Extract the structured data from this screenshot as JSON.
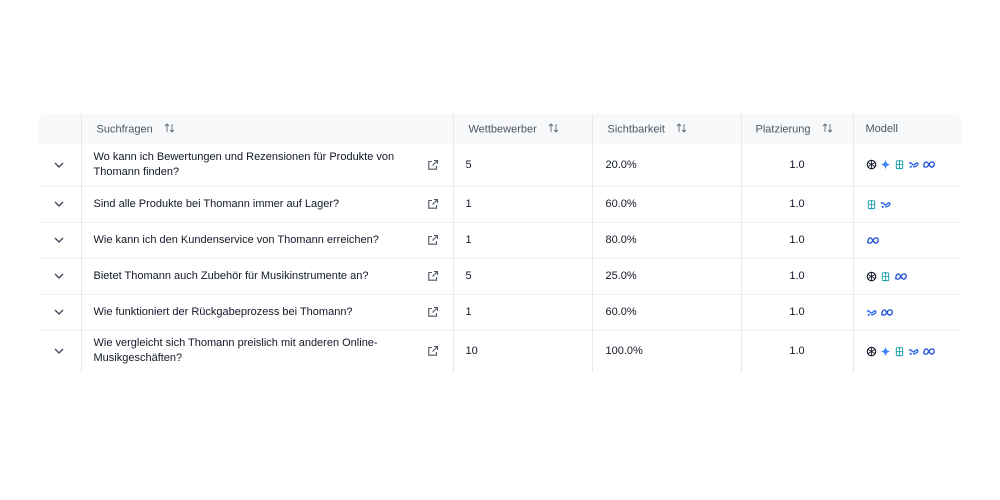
{
  "table": {
    "columns": {
      "query": "Suchfragen",
      "competitors": "Wettbewerber",
      "visibility": "Sichtbarkeit",
      "placement": "Platzierung",
      "model": "Modell"
    },
    "rows": [
      {
        "query": "Wo kann ich Bewertungen und Rezensionen für Produkte von Thomann finden?",
        "competitors": "5",
        "visibility": "20.0%",
        "placement": "1.0",
        "models": [
          "openai-icon",
          "gemini-icon",
          "perplexity-icon",
          "copilot-icon",
          "meta-icon"
        ]
      },
      {
        "query": "Sind alle Produkte bei Thomann immer auf Lager?",
        "competitors": "1",
        "visibility": "60.0%",
        "placement": "1.0",
        "models": [
          "perplexity-icon",
          "copilot-icon"
        ]
      },
      {
        "query": "Wie kann ich den Kundenservice von Thomann erreichen?",
        "competitors": "1",
        "visibility": "80.0%",
        "placement": "1.0",
        "models": [
          "meta-icon"
        ]
      },
      {
        "query": "Bietet Thomann auch Zubehör für Musikinstrumente an?",
        "competitors": "5",
        "visibility": "25.0%",
        "placement": "1.0",
        "models": [
          "openai-icon",
          "perplexity-icon",
          "meta-icon"
        ]
      },
      {
        "query": "Wie funktioniert der Rückgabeprozess bei Thomann?",
        "competitors": "1",
        "visibility": "60.0%",
        "placement": "1.0",
        "models": [
          "copilot-icon",
          "meta-icon"
        ]
      },
      {
        "query": "Wie vergleicht sich Thomann preislich mit anderen Online-Musikgeschäften?",
        "competitors": "10",
        "visibility": "100.0%",
        "placement": "1.0",
        "models": [
          "openai-icon",
          "gemini-icon",
          "perplexity-icon",
          "copilot-icon",
          "meta-icon"
        ]
      }
    ]
  },
  "colors": {
    "header_bg": "#f8f9fa",
    "border": "#e5e7eb",
    "icon_blue": "#2563eb",
    "icon_teal": "#0e9aa7"
  }
}
